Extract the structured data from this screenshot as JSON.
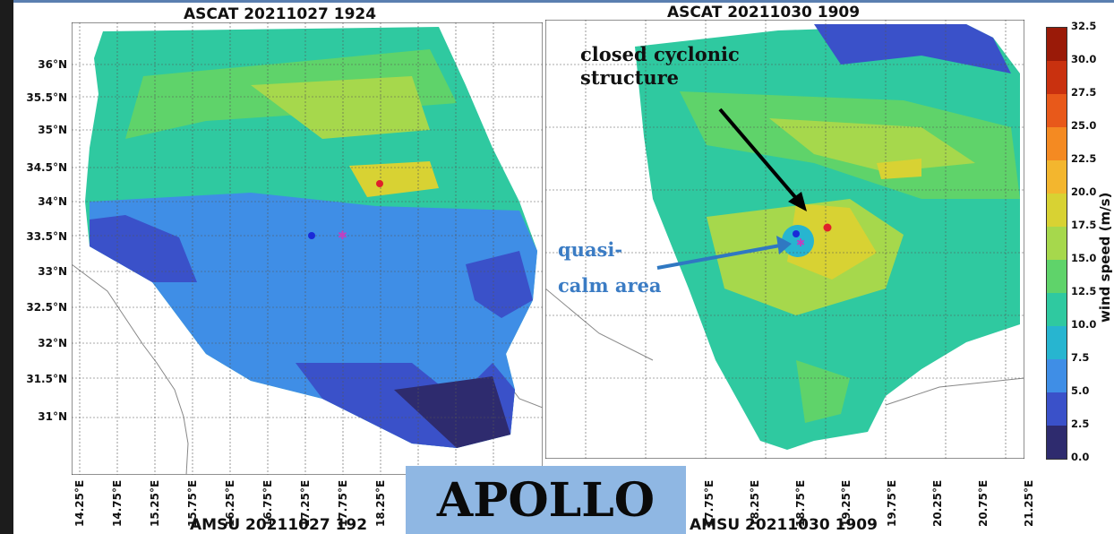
{
  "panels": [
    {
      "title": "ASCAT  20211027 1924",
      "ylabels": [
        "36°N",
        "35.5°N",
        "35°N",
        "34.5°N",
        "34°N",
        "33.5°N",
        "33°N",
        "32.5°N",
        "32°N",
        "31.5°N",
        "31°N"
      ],
      "xlabels": [
        "14.25°E",
        "14.75°E",
        "15.25°E",
        "15.75°E",
        "16.25°E",
        "16.75°E",
        "17.25°E",
        "17.75°E",
        "18.25°E"
      ]
    },
    {
      "title": "ASCAT  20211030 1909",
      "xlabels": [
        "17.75°E",
        "18.25°E",
        "18.75°E",
        "19.25°E",
        "19.75°E",
        "20.25°E",
        "20.75°E",
        "21.25°E"
      ]
    }
  ],
  "colorbar": {
    "ticks": [
      "32.5",
      "30.0",
      "27.5",
      "25.0",
      "22.5",
      "20.0",
      "17.5",
      "15.0",
      "12.5",
      "10.0",
      "7.5",
      "5.0",
      "2.5",
      "0.0"
    ],
    "label": "wind speed (m/s)",
    "colors": [
      "#2e2b6e",
      "#3a51c9",
      "#3f8ee6",
      "#27b5d0",
      "#2fc9a0",
      "#5fd36a",
      "#a6d84c",
      "#d8d233",
      "#f3b62e",
      "#f48a22",
      "#e8591a",
      "#c9310f",
      "#9a1a08"
    ]
  },
  "annotations": {
    "closed_line1": "closed cyclonic",
    "closed_line2": "structure",
    "quasi_line1": "quasi-",
    "quasi_line2": "calm area"
  },
  "banner": "APOLLO",
  "bottom_titles": [
    "AMSU 20211027 192",
    "AMSU 20211030 1909"
  ]
}
